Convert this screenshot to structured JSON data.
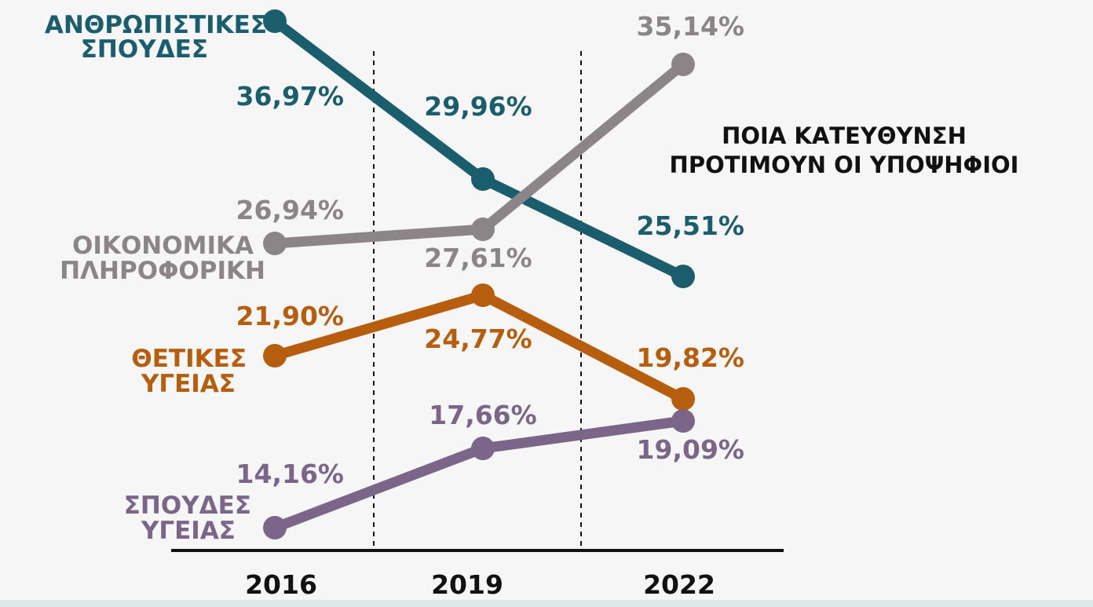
{
  "chart_data": {
    "type": "line",
    "title": "ΠΟΙΑ ΚΑΤΕΥΘΥΝΣΗ ΠΡΟΤΙΜΟΥΝ ΟΙ ΥΠΟΨΗΦΙΟΙ",
    "title_lines": [
      "ΠΟΙΑ ΚΑΤΕΥΘΥΝΣΗ",
      "ΠΡΟΤΙΜΟΥΝ ΟΙ ΥΠΟΨΗΦΙΟΙ"
    ],
    "x": [
      "2016",
      "2019",
      "2022"
    ],
    "grid": "dashed vertical separators between years",
    "legend": "inline labels at left of each line",
    "series": [
      {
        "name": "ΑΝΘΡΩΠΙΣΤΙΚΕΣ ΣΠΟΥΔΕΣ",
        "name_lines": [
          "ΑΝΘΡΩΠΙΣΤΙΚΕΣ",
          "ΣΠΟΥΔΕΣ"
        ],
        "color": "#1a5e6e",
        "values": [
          36.97,
          29.96,
          25.51
        ],
        "value_labels": [
          "36,97%",
          "29,96%",
          "25,51%"
        ]
      },
      {
        "name": "ΟΙΚΟΝΟΜΙΚΑ ΠΛΗΡΟΦΟΡΙΚΗ",
        "name_lines": [
          "ΟΙΚΟΝΟΜΙΚΑ",
          "ΠΛΗΡΟΦΟΡΙΚΗ"
        ],
        "color": "#8c8587",
        "values": [
          26.94,
          27.61,
          35.14
        ],
        "value_labels": [
          "26,94%",
          "27,61%",
          "35,14%"
        ]
      },
      {
        "name": "ΘΕΤΙΚΕΣ ΥΓΕΙΑΣ",
        "name_lines": [
          "ΘΕΤΙΚΕΣ",
          "ΥΓΕΙΑΣ"
        ],
        "color": "#b65e0e",
        "values": [
          21.9,
          24.77,
          19.82
        ],
        "value_labels": [
          "21,90%",
          "24,77%",
          "19,82%"
        ]
      },
      {
        "name": "ΣΠΟΥΔΕΣ ΥΓΕΙΑΣ",
        "name_lines": [
          "ΣΠΟΥΔΕΣ",
          "ΥΓΕΙΑΣ"
        ],
        "color": "#7b6689",
        "values": [
          14.16,
          17.66,
          19.09
        ],
        "value_labels": [
          "14,16%",
          "17,66%",
          "19,09%"
        ]
      }
    ]
  }
}
